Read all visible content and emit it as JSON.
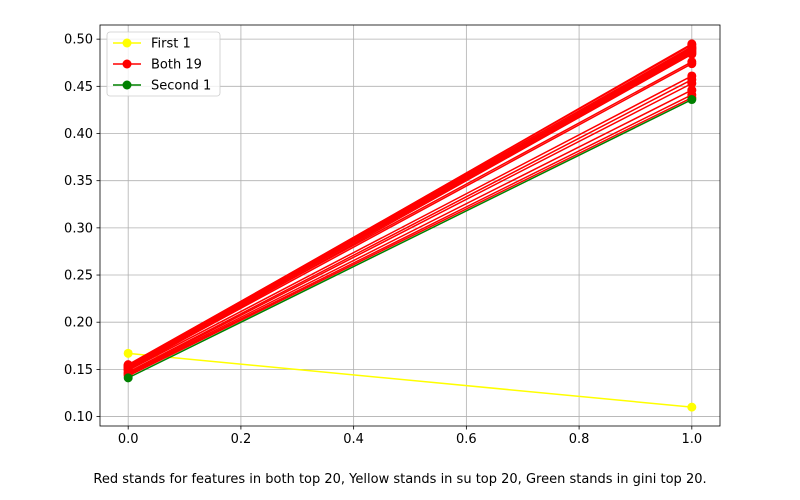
{
  "chart_data": {
    "type": "line",
    "caption": "Red stands for features in both top 20, Yellow stands in su top 20, Green stands in gini top 20.",
    "x": [
      0,
      1
    ],
    "xlim": [
      -0.05,
      1.05
    ],
    "ylim": [
      0.09,
      0.515
    ],
    "xticks": [
      "0.0",
      "0.2",
      "0.4",
      "0.6",
      "0.8",
      "1.0"
    ],
    "xtick_values": [
      0,
      0.2,
      0.4,
      0.6,
      0.8,
      1.0
    ],
    "yticks": [
      "0.10",
      "0.15",
      "0.20",
      "0.25",
      "0.30",
      "0.35",
      "0.40",
      "0.45",
      "0.50"
    ],
    "ytick_values": [
      0.1,
      0.15,
      0.2,
      0.25,
      0.3,
      0.35,
      0.4,
      0.45,
      0.5
    ],
    "grid": true,
    "legend_position": "top-left",
    "legend": [
      {
        "label": "First 1",
        "color": "#ffff00"
      },
      {
        "label": "Both 19",
        "color": "#ff0000"
      },
      {
        "label": "Second 1",
        "color": "#008000"
      }
    ],
    "series": [
      {
        "name": "First 1",
        "color": "#ffff00",
        "values": [
          0.167,
          0.11
        ]
      },
      {
        "color": "#ff0000",
        "values": [
          0.153,
          0.495
        ]
      },
      {
        "color": "#ff0000",
        "values": [
          0.154,
          0.494
        ]
      },
      {
        "color": "#ff0000",
        "values": [
          0.152,
          0.492
        ]
      },
      {
        "color": "#ff0000",
        "values": [
          0.155,
          0.491
        ]
      },
      {
        "color": "#ff0000",
        "values": [
          0.151,
          0.49
        ]
      },
      {
        "color": "#ff0000",
        "values": [
          0.153,
          0.489
        ]
      },
      {
        "color": "#ff0000",
        "values": [
          0.15,
          0.488
        ]
      },
      {
        "color": "#ff0000",
        "values": [
          0.152,
          0.487
        ]
      },
      {
        "color": "#ff0000",
        "values": [
          0.154,
          0.486
        ]
      },
      {
        "color": "#ff0000",
        "values": [
          0.151,
          0.485
        ]
      },
      {
        "color": "#ff0000",
        "values": [
          0.149,
          0.484
        ]
      },
      {
        "color": "#ff0000",
        "values": [
          0.152,
          0.476
        ]
      },
      {
        "color": "#ff0000",
        "values": [
          0.15,
          0.474
        ]
      },
      {
        "color": "#ff0000",
        "values": [
          0.149,
          0.461
        ]
      },
      {
        "color": "#ff0000",
        "values": [
          0.147,
          0.457
        ]
      },
      {
        "color": "#ff0000",
        "values": [
          0.146,
          0.453
        ]
      },
      {
        "color": "#ff0000",
        "values": [
          0.145,
          0.446
        ]
      },
      {
        "color": "#ff0000",
        "values": [
          0.144,
          0.441
        ]
      },
      {
        "color": "#ff0000",
        "values": [
          0.143,
          0.438
        ]
      },
      {
        "name": "Second 1",
        "color": "#008000",
        "values": [
          0.141,
          0.436
        ]
      }
    ]
  }
}
